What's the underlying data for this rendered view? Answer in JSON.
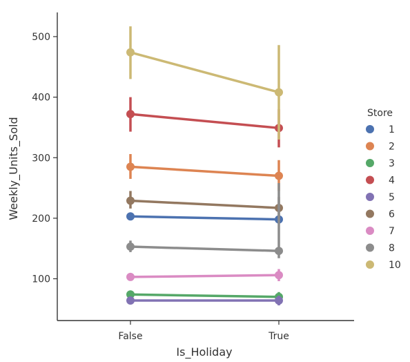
{
  "chart_data": {
    "type": "line",
    "subtype": "point-plot",
    "categories": [
      "False",
      "True"
    ],
    "xlabel": "Is_Holiday",
    "ylabel": "Weekly_Units_Sold",
    "ylim": [
      0,
      540
    ],
    "yticks": [
      100,
      200,
      300,
      400,
      500
    ],
    "grid": false,
    "legend": {
      "title": "Store",
      "placement": "right"
    },
    "series": [
      {
        "name": "1",
        "color": "#4C72B0",
        "values": [
          203,
          198
        ],
        "ci": [
          [
            197,
            209
          ],
          [
            192,
            204
          ]
        ]
      },
      {
        "name": "2",
        "color": "#DD8452",
        "values": [
          285,
          270
        ],
        "ci": [
          [
            265,
            306
          ],
          [
            245,
            296
          ]
        ]
      },
      {
        "name": "3",
        "color": "#55A868",
        "values": [
          74,
          70
        ],
        "ci": [
          [
            70,
            78
          ],
          [
            62,
            78
          ]
        ]
      },
      {
        "name": "4",
        "color": "#C44E52",
        "values": [
          372,
          349
        ],
        "ci": [
          [
            343,
            400
          ],
          [
            317,
            380
          ]
        ]
      },
      {
        "name": "5",
        "color": "#8172B3",
        "values": [
          64,
          64
        ],
        "ci": [
          [
            61,
            67
          ],
          [
            56,
            72
          ]
        ]
      },
      {
        "name": "6",
        "color": "#937860",
        "values": [
          229,
          217
        ],
        "ci": [
          [
            216,
            245
          ],
          [
            200,
            235
          ]
        ]
      },
      {
        "name": "7",
        "color": "#DA8BC3",
        "values": [
          103,
          106
        ],
        "ci": [
          [
            98,
            108
          ],
          [
            96,
            116
          ]
        ]
      },
      {
        "name": "8",
        "color": "#8C8C8C",
        "values": [
          153,
          146
        ],
        "ci": [
          [
            144,
            163
          ],
          [
            134,
            258
          ]
        ]
      },
      {
        "name": "10",
        "color": "#CCB974",
        "values": [
          474,
          408
        ],
        "ci": [
          [
            430,
            517
          ],
          [
            330,
            486
          ]
        ]
      }
    ]
  }
}
